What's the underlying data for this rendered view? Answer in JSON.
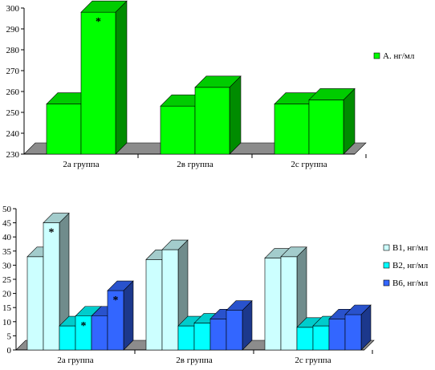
{
  "chart_data": [
    {
      "type": "bar",
      "title": "",
      "xlabel": "",
      "ylabel": "",
      "ylim": [
        230,
        300
      ],
      "yticks": [
        230,
        240,
        250,
        260,
        270,
        280,
        290,
        300
      ],
      "categories": [
        "2а группа",
        "2в группа",
        "2с группа"
      ],
      "series": [
        {
          "name": "А. нг/мл",
          "color": "#00FF00",
          "values": [
            [
              254,
              298
            ],
            [
              253,
              262
            ],
            [
              254,
              256
            ]
          ]
        }
      ],
      "annotations": [
        {
          "text": "*",
          "category": 0,
          "bar": 1
        }
      ],
      "legend": "right"
    },
    {
      "type": "bar",
      "title": "",
      "xlabel": "",
      "ylabel": "",
      "ylim": [
        0,
        50
      ],
      "yticks": [
        0,
        5,
        10,
        15,
        20,
        25,
        30,
        35,
        40,
        45,
        50
      ],
      "categories": [
        "2а группа",
        "2в группа",
        "2с группа"
      ],
      "series": [
        {
          "name": "В1, нг/мл",
          "color": "#CCFFFF",
          "values": [
            [
              33,
              45
            ],
            [
              32,
              35.5
            ],
            [
              32.5,
              33
            ]
          ]
        },
        {
          "name": "В2, нг/мл",
          "color": "#00FFFF",
          "values": [
            [
              8.5,
              12
            ],
            [
              8.5,
              9.5
            ],
            [
              8,
              8.5
            ]
          ]
        },
        {
          "name": "В6, нг/мл",
          "color": "#3366FF",
          "values": [
            [
              12,
              21
            ],
            [
              11,
              14
            ],
            [
              11,
              12.5
            ]
          ]
        }
      ],
      "annotations": [
        {
          "text": "*",
          "category": 0,
          "series": 0,
          "bar": 1
        },
        {
          "text": "*",
          "category": 0,
          "series": 1,
          "bar": 1
        },
        {
          "text": "*",
          "category": 0,
          "series": 2,
          "bar": 1
        }
      ],
      "legend": "right"
    }
  ]
}
